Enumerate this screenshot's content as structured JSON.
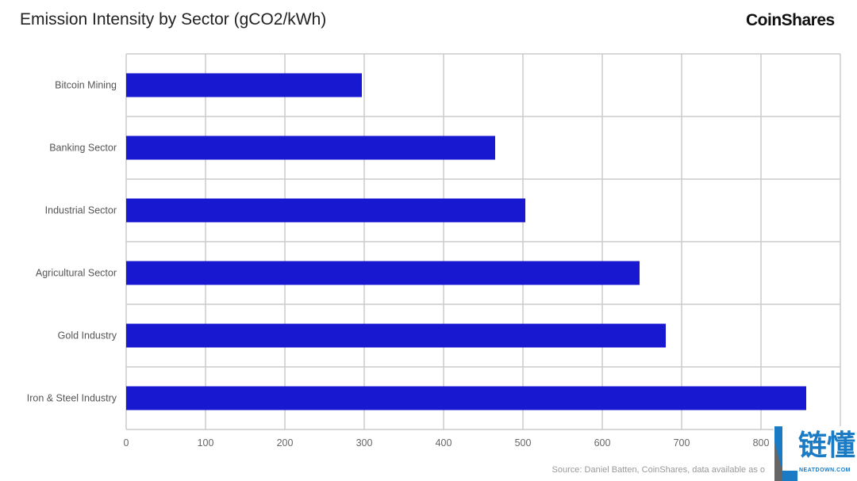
{
  "chart_data": {
    "type": "bar",
    "orientation": "horizontal",
    "title": "Emission Intensity by Sector (gCO2/kWh)",
    "categories": [
      "Bitcoin Mining",
      "Banking Sector",
      "Industrial Sector",
      "Agricultural Sector",
      "Gold Industry",
      "Iron & Steel Industry"
    ],
    "values": [
      297,
      465,
      503,
      647,
      680,
      857
    ],
    "xlim": [
      0,
      900
    ],
    "xticks": [
      "0",
      "100",
      "200",
      "300",
      "400",
      "500",
      "600",
      "700",
      "800"
    ],
    "grid": true,
    "bar_color": "#1818d0"
  },
  "brand": "CoinShares",
  "source": "Source: Daniel Batten, CoinShares, data available as o",
  "watermark": {
    "cn": "链懂",
    "en": "NEATDOWN.COM"
  }
}
